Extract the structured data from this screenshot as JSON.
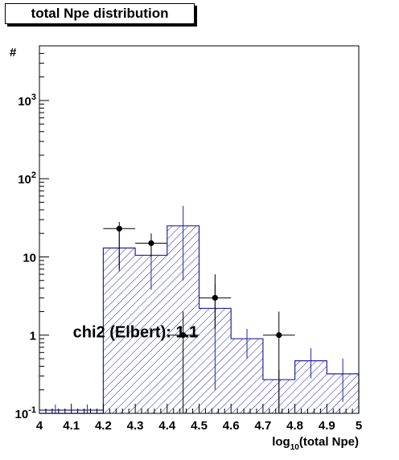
{
  "chart_data": {
    "type": "histogram",
    "title": "total Npe distribution",
    "xlabel": "log10(total Npe)",
    "ylabel": "#",
    "xlim": [
      4,
      5
    ],
    "ylim": [
      0.1,
      5000
    ],
    "yscale": "log",
    "x_ticks": [
      "4",
      "4.1",
      "4.2",
      "4.3",
      "4.4",
      "4.5",
      "4.6",
      "4.7",
      "4.8",
      "4.9",
      "5"
    ],
    "y_ticks": [
      {
        "value": 0.1,
        "base": "10",
        "exp": "-1"
      },
      {
        "value": 1,
        "base": "1",
        "exp": ""
      },
      {
        "value": 10,
        "base": "10",
        "exp": ""
      },
      {
        "value": 100,
        "base": "10",
        "exp": "2"
      },
      {
        "value": 1000,
        "base": "10",
        "exp": "3"
      }
    ],
    "histogram": {
      "fill_pattern": "hatched",
      "color": "#2222aa",
      "bins": [
        {
          "lo": 4.2,
          "hi": 4.3,
          "value": 13,
          "err_lo": 6.5,
          "err_hi": 22
        },
        {
          "lo": 4.3,
          "hi": 4.4,
          "value": 10.5,
          "err_lo": 3.8,
          "err_hi": 13
        },
        {
          "lo": 4.4,
          "hi": 4.5,
          "value": 25,
          "err_lo": 5,
          "err_hi": 45
        },
        {
          "lo": 4.5,
          "hi": 4.6,
          "value": 2.2,
          "err_lo": 0.2,
          "err_hi": 4.5
        },
        {
          "lo": 4.6,
          "hi": 4.7,
          "value": 0.9,
          "err_lo": 0.5,
          "err_hi": 1.2
        },
        {
          "lo": 4.7,
          "hi": 4.8,
          "value": 0.27,
          "err_lo": 0.1,
          "err_hi": 0.36
        },
        {
          "lo": 4.8,
          "hi": 4.9,
          "value": 0.47,
          "err_lo": 0.28,
          "err_hi": 0.68
        },
        {
          "lo": 4.9,
          "hi": 5.0,
          "value": 0.32,
          "err_lo": 0.14,
          "err_hi": 0.5
        }
      ],
      "low_error_stubs": [
        4.05,
        4.15
      ]
    },
    "data_points": {
      "color": "#000000",
      "points": [
        {
          "x": 4.25,
          "y": 23,
          "xerr": 0.05,
          "ylo": 7,
          "yhi": 28
        },
        {
          "x": 4.35,
          "y": 15,
          "xerr": 0.05,
          "ylo": 10,
          "yhi": 20
        },
        {
          "x": 4.45,
          "y": 1,
          "xerr": 0.05,
          "ylo": 0.1,
          "yhi": 2
        },
        {
          "x": 4.55,
          "y": 3,
          "xerr": 0.05,
          "ylo": 1.2,
          "yhi": 6
        },
        {
          "x": 4.75,
          "y": 1,
          "xerr": 0.05,
          "ylo": 0.1,
          "yhi": 2
        }
      ]
    },
    "annotation": {
      "text": "chi2 (Elbert): 1.1",
      "x": 4.105,
      "y": 1.1
    }
  }
}
